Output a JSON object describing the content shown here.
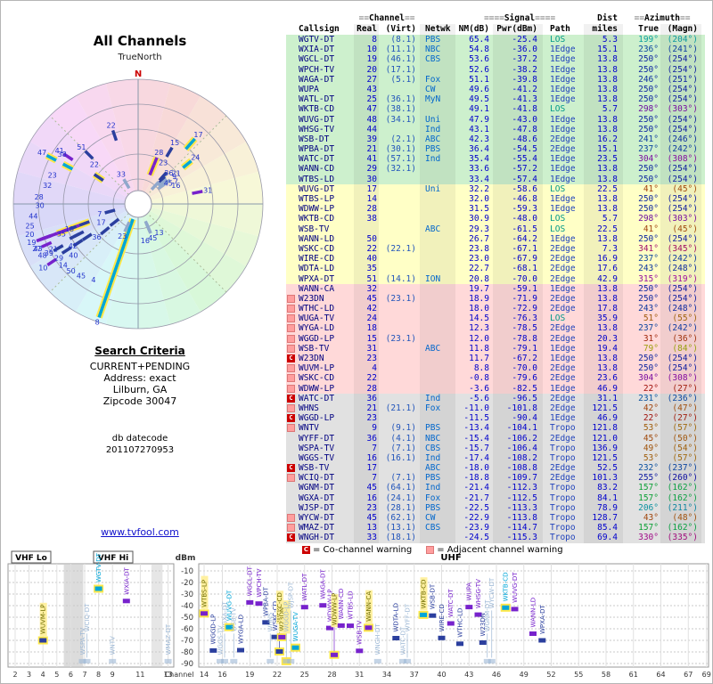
{
  "radar": {
    "title": "All Channels",
    "subtitle": "TrueNorth",
    "north_label": "N"
  },
  "search": {
    "heading": "Search Criteria",
    "lines": [
      "CURRENT+PENDING",
      "Address: exact",
      "Lilburn, GA",
      "Zipcode 30047"
    ],
    "datecode_label": "db datecode",
    "datecode": "201107270953"
  },
  "link": "www.tvfool.com",
  "table": {
    "groups": {
      "channel": "Channel",
      "signal": "Signal",
      "dist": "Dist",
      "azimuth": "Azimuth"
    },
    "headers": {
      "callsign": "Callsign",
      "real": "Real",
      "virt": "(Virt)",
      "netwk": "Netwk",
      "nm": "NM(dB)",
      "pwr": "Pwr(dBm)",
      "path": "Path",
      "miles": "miles",
      "true": "True",
      "magn": "(Magn)"
    }
  },
  "legend": {
    "c_symbol": "C",
    "c_text": "= Co-channel warning",
    "a_text": "= Adjacent channel warning"
  },
  "spectrum": {
    "bands": [
      "VHF Lo",
      "VHF Hi",
      "UHF"
    ],
    "dbm_label": "dBm",
    "channel_label": "Channel",
    "dbm_ticks": [
      -10,
      -20,
      -30,
      -40,
      -50,
      -60,
      -70,
      -80,
      -90
    ],
    "vhf_ticks": [
      2,
      3,
      4,
      5,
      6,
      7,
      8,
      9,
      11,
      13
    ],
    "uhf_ticks": [
      14,
      16,
      19,
      22,
      25,
      28,
      31,
      34,
      37,
      40,
      43,
      46,
      49,
      52,
      55,
      58,
      61,
      64,
      67,
      69
    ]
  },
  "colors": {
    "los": "#00a6d8",
    "edge1": "#7722cc",
    "edge2": "#2b3f9e",
    "tropo": "#90a8cc",
    "analog_halo": "#ffe84a",
    "north": "#cc0000",
    "link": "#1111cc",
    "band_green": "#cdf0cd",
    "band_yellow": "#ffffc6",
    "band_pink": "#ffd9d9",
    "band_gray": "#e1e1e1",
    "warn_c": "#cc0000",
    "warn_a": "#ff9e9e"
  },
  "chart_data": {
    "type": "table",
    "title": "All Channels",
    "columns": [
      "Callsign",
      "Real",
      "(Virt)",
      "Netwk",
      "NM(dB)",
      "Pwr(dBm)",
      "Path",
      "miles",
      "True",
      "(Magn)"
    ],
    "radar_plot": {
      "type": "polar-scatter",
      "angle_field": "az_true",
      "radius_field": "nm",
      "radius_range": [
        -30,
        70
      ]
    },
    "spectrum_plot": {
      "type": "scatter",
      "x_field": "real channel",
      "y_field": "pwr",
      "ylim": [
        -90,
        -10
      ]
    },
    "stations": [
      {
        "callsign": "WGTV-DT",
        "real": "8",
        "virt": "(8.1)",
        "netwk": "PBS",
        "nm": 65.4,
        "pwr": -25.4,
        "path": "LOS",
        "miles": 5.3,
        "az_true": 199,
        "az_magn": 204,
        "band": "green",
        "warn": "",
        "analog": false
      },
      {
        "callsign": "WXIA-DT",
        "real": "10",
        "virt": "(11.1)",
        "netwk": "NBC",
        "nm": 54.8,
        "pwr": -36.0,
        "path": "1Edge",
        "miles": 15.1,
        "az_true": 236,
        "az_magn": 241,
        "band": "green",
        "warn": "",
        "analog": false
      },
      {
        "callsign": "WGCL-DT",
        "real": "19",
        "virt": "(46.1)",
        "netwk": "CBS",
        "nm": 53.6,
        "pwr": -37.2,
        "path": "1Edge",
        "miles": 13.8,
        "az_true": 250,
        "az_magn": 254,
        "band": "green",
        "warn": "",
        "analog": false
      },
      {
        "callsign": "WPCH-TV",
        "real": "20",
        "virt": "(17.1)",
        "netwk": "",
        "nm": 52.6,
        "pwr": -38.2,
        "path": "1Edge",
        "miles": 13.8,
        "az_true": 250,
        "az_magn": 254,
        "band": "green",
        "warn": "",
        "analog": false
      },
      {
        "callsign": "WAGA-DT",
        "real": "27",
        "virt": "(5.1)",
        "netwk": "Fox",
        "nm": 51.1,
        "pwr": -39.8,
        "path": "1Edge",
        "miles": 13.8,
        "az_true": 246,
        "az_magn": 251,
        "band": "green",
        "warn": "",
        "analog": false
      },
      {
        "callsign": "WUPA",
        "real": "43",
        "virt": "",
        "netwk": "CW",
        "nm": 49.6,
        "pwr": -41.2,
        "path": "1Edge",
        "miles": 13.8,
        "az_true": 250,
        "az_magn": 254,
        "band": "green",
        "warn": "",
        "analog": false
      },
      {
        "callsign": "WATL-DT",
        "real": "25",
        "virt": "(36.1)",
        "netwk": "MyN",
        "nm": 49.5,
        "pwr": -41.3,
        "path": "1Edge",
        "miles": 13.8,
        "az_true": 250,
        "az_magn": 254,
        "band": "green",
        "warn": "",
        "analog": false
      },
      {
        "callsign": "WKTB-CD",
        "real": "47",
        "virt": "(38.1)",
        "netwk": "",
        "nm": 49.1,
        "pwr": -41.8,
        "path": "LOS",
        "miles": 5.7,
        "az_true": 298,
        "az_magn": 303,
        "band": "green",
        "warn": "",
        "analog": false
      },
      {
        "callsign": "WUVG-DT",
        "real": "48",
        "virt": "(34.1)",
        "netwk": "Uni",
        "nm": 47.9,
        "pwr": -43.0,
        "path": "1Edge",
        "miles": 13.8,
        "az_true": 250,
        "az_magn": 254,
        "band": "green",
        "warn": "",
        "analog": false
      },
      {
        "callsign": "WHSG-TV",
        "real": "44",
        "virt": "",
        "netwk": "Ind",
        "nm": 43.1,
        "pwr": -47.8,
        "path": "1Edge",
        "miles": 13.8,
        "az_true": 250,
        "az_magn": 254,
        "band": "green",
        "warn": "",
        "analog": false
      },
      {
        "callsign": "WSB-DT",
        "real": "39",
        "virt": "(2.1)",
        "netwk": "ABC",
        "nm": 42.3,
        "pwr": -48.6,
        "path": "2Edge",
        "miles": 16.2,
        "az_true": 241,
        "az_magn": 246,
        "band": "green",
        "warn": "",
        "analog": false
      },
      {
        "callsign": "WPBA-DT",
        "real": "21",
        "virt": "(30.1)",
        "netwk": "PBS",
        "nm": 36.4,
        "pwr": -54.5,
        "path": "2Edge",
        "miles": 15.1,
        "az_true": 237,
        "az_magn": 242,
        "band": "green",
        "warn": "",
        "analog": false
      },
      {
        "callsign": "WATC-DT",
        "real": "41",
        "virt": "(57.1)",
        "netwk": "Ind",
        "nm": 35.4,
        "pwr": -55.4,
        "path": "1Edge",
        "miles": 23.5,
        "az_true": 304,
        "az_magn": 308,
        "band": "green",
        "warn": "",
        "analog": false
      },
      {
        "callsign": "WANN-CD",
        "real": "29",
        "virt": "(32.1)",
        "netwk": "",
        "nm": 33.6,
        "pwr": -57.2,
        "path": "1Edge",
        "miles": 13.8,
        "az_true": 250,
        "az_magn": 254,
        "band": "green",
        "warn": "",
        "analog": false
      },
      {
        "callsign": "WTBS-LD",
        "real": "30",
        "virt": "",
        "netwk": "",
        "nm": 33.4,
        "pwr": -57.4,
        "path": "1Edge",
        "miles": 13.8,
        "az_true": 250,
        "az_magn": 254,
        "band": "green",
        "warn": "",
        "analog": false
      },
      {
        "callsign": "WUVG-DT",
        "real": "17",
        "virt": "",
        "netwk": "Uni",
        "nm": 32.2,
        "pwr": -58.6,
        "path": "LOS",
        "miles": 22.5,
        "az_true": 41,
        "az_magn": 45,
        "band": "yellow",
        "warn": "",
        "analog": false
      },
      {
        "callsign": "WTBS-LP",
        "real": "14",
        "virt": "",
        "netwk": "",
        "nm": 32.0,
        "pwr": -46.8,
        "path": "1Edge",
        "miles": 13.8,
        "az_true": 250,
        "az_magn": 254,
        "band": "yellow",
        "warn": "",
        "analog": true
      },
      {
        "callsign": "WDWW-LP",
        "real": "28",
        "virt": "",
        "netwk": "",
        "nm": 31.5,
        "pwr": -59.3,
        "path": "1Edge",
        "miles": 13.8,
        "az_true": 250,
        "az_magn": 254,
        "band": "yellow",
        "warn": "",
        "analog": false
      },
      {
        "callsign": "WKTB-CD",
        "real": "38",
        "virt": "",
        "netwk": "",
        "nm": 30.9,
        "pwr": -48.0,
        "path": "LOS",
        "miles": 5.7,
        "az_true": 298,
        "az_magn": 303,
        "band": "yellow",
        "warn": "",
        "analog": true
      },
      {
        "callsign": "WSB-TV",
        "real": "",
        "virt": "",
        "netwk": "ABC",
        "nm": 29.3,
        "pwr": -61.5,
        "path": "LOS",
        "miles": 22.5,
        "az_true": 41,
        "az_magn": 45,
        "band": "yellow",
        "warn": "",
        "analog": false
      },
      {
        "callsign": "WANN-LD",
        "real": "50",
        "virt": "",
        "netwk": "",
        "nm": 26.7,
        "pwr": -64.2,
        "path": "1Edge",
        "miles": 13.8,
        "az_true": 250,
        "az_magn": 254,
        "band": "yellow",
        "warn": "",
        "analog": false
      },
      {
        "callsign": "WSKC-CD",
        "real": "22",
        "virt": "(22.1)",
        "netwk": "",
        "nm": 23.8,
        "pwr": -67.1,
        "path": "2Edge",
        "miles": 7.3,
        "az_true": 341,
        "az_magn": 345,
        "band": "yellow",
        "warn": "",
        "analog": false
      },
      {
        "callsign": "WIRE-CD",
        "real": "40",
        "virt": "",
        "netwk": "",
        "nm": 23.0,
        "pwr": -67.9,
        "path": "2Edge",
        "miles": 16.9,
        "az_true": 237,
        "az_magn": 242,
        "band": "yellow",
        "warn": "",
        "analog": false
      },
      {
        "callsign": "WDTA-LD",
        "real": "35",
        "virt": "",
        "netwk": "",
        "nm": 22.7,
        "pwr": -68.1,
        "path": "2Edge",
        "miles": 17.6,
        "az_true": 243,
        "az_magn": 248,
        "band": "yellow",
        "warn": "",
        "analog": false
      },
      {
        "callsign": "WPXA-DT",
        "real": "51",
        "virt": "(14.1)",
        "netwk": "ION",
        "nm": 20.8,
        "pwr": -70.0,
        "path": "2Edge",
        "miles": 42.9,
        "az_true": 315,
        "az_magn": 319,
        "band": "yellow",
        "warn": "",
        "analog": false
      },
      {
        "callsign": "WANN-CA",
        "real": "32",
        "virt": "",
        "netwk": "",
        "nm": 19.7,
        "pwr": -59.1,
        "path": "1Edge",
        "miles": 13.8,
        "az_true": 250,
        "az_magn": 254,
        "band": "pink",
        "warn": "",
        "analog": true
      },
      {
        "callsign": "W23DN",
        "real": "45",
        "virt": "(23.1)",
        "netwk": "",
        "nm": 18.9,
        "pwr": -71.9,
        "path": "2Edge",
        "miles": 13.8,
        "az_true": 250,
        "az_magn": 254,
        "band": "pink",
        "warn": "A",
        "analog": false
      },
      {
        "callsign": "WTHC-LD",
        "real": "42",
        "virt": "",
        "netwk": "",
        "nm": 18.0,
        "pwr": -72.9,
        "path": "2Edge",
        "miles": 17.8,
        "az_true": 243,
        "az_magn": 248,
        "band": "pink",
        "warn": "A",
        "analog": false
      },
      {
        "callsign": "WUGA-TV",
        "real": "24",
        "virt": "",
        "netwk": "",
        "nm": 14.5,
        "pwr": -76.3,
        "path": "LOS",
        "miles": 35.9,
        "az_true": 51,
        "az_magn": 55,
        "band": "pink",
        "warn": "A",
        "analog": false
      },
      {
        "callsign": "WYGA-LD",
        "real": "18",
        "virt": "",
        "netwk": "",
        "nm": 12.3,
        "pwr": -78.5,
        "path": "2Edge",
        "miles": 13.8,
        "az_true": 237,
        "az_magn": 242,
        "band": "pink",
        "warn": "A",
        "analog": false
      },
      {
        "callsign": "WGGD-LP",
        "real": "15",
        "virt": "(23.1)",
        "netwk": "",
        "nm": 12.0,
        "pwr": -78.8,
        "path": "2Edge",
        "miles": 20.3,
        "az_true": 31,
        "az_magn": 36,
        "band": "pink",
        "warn": "A",
        "analog": false
      },
      {
        "callsign": "WSB-TV",
        "real": "31",
        "virt": "",
        "netwk": "ABC",
        "nm": 11.8,
        "pwr": -79.1,
        "path": "1Edge",
        "miles": 19.4,
        "az_true": 79,
        "az_magn": 84,
        "band": "pink",
        "warn": "A",
        "analog": false
      },
      {
        "callsign": "W23DN",
        "real": "23",
        "virt": "",
        "netwk": "",
        "nm": 11.7,
        "pwr": -67.2,
        "path": "1Edge",
        "miles": 13.8,
        "az_true": 250,
        "az_magn": 254,
        "band": "pink",
        "warn": "C",
        "analog": true
      },
      {
        "callsign": "WUVM-LP",
        "real": "4",
        "virt": "",
        "netwk": "",
        "nm": 8.8,
        "pwr": -70.0,
        "path": "2Edge",
        "miles": 13.8,
        "az_true": 250,
        "az_magn": 254,
        "band": "pink",
        "warn": "A",
        "analog": true
      },
      {
        "callsign": "WSKC-CD",
        "real": "22",
        "virt": "",
        "netwk": "",
        "nm": -0.8,
        "pwr": -79.6,
        "path": "2Edge",
        "miles": 23.6,
        "az_true": 304,
        "az_magn": 308,
        "band": "pink",
        "warn": "A",
        "analog": true
      },
      {
        "callsign": "WDWW-LP",
        "real": "28",
        "virt": "",
        "netwk": "",
        "nm": -3.6,
        "pwr": -82.5,
        "path": "1Edge",
        "miles": 46.9,
        "az_true": 22,
        "az_magn": 27,
        "band": "pink",
        "warn": "A",
        "analog": true
      },
      {
        "callsign": "WATC-DT",
        "real": "36",
        "virt": "",
        "netwk": "Ind",
        "nm": -5.6,
        "pwr": -96.5,
        "path": "2Edge",
        "miles": 31.1,
        "az_true": 231,
        "az_magn": 236,
        "band": "gray",
        "warn": "C",
        "analog": false
      },
      {
        "callsign": "WHNS",
        "real": "21",
        "virt": "(21.1)",
        "netwk": "Fox",
        "nm": -11.0,
        "pwr": -101.8,
        "path": "2Edge",
        "miles": 121.5,
        "az_true": 42,
        "az_magn": 47,
        "band": "gray",
        "warn": "A",
        "analog": false
      },
      {
        "callsign": "WGGD-LP",
        "real": "23",
        "virt": "",
        "netwk": "",
        "nm": -11.5,
        "pwr": -90.4,
        "path": "1Edge",
        "miles": 46.9,
        "az_true": 22,
        "az_magn": 27,
        "band": "gray",
        "warn": "C",
        "analog": true
      },
      {
        "callsign": "WNTV",
        "real": "9",
        "virt": "(9.1)",
        "netwk": "PBS",
        "nm": -13.4,
        "pwr": -104.1,
        "path": "Tropo",
        "miles": 121.8,
        "az_true": 53,
        "az_magn": 57,
        "band": "gray",
        "warn": "A",
        "analog": false
      },
      {
        "callsign": "WYFF-DT",
        "real": "36",
        "virt": "(4.1)",
        "netwk": "NBC",
        "nm": -15.4,
        "pwr": -106.2,
        "path": "2Edge",
        "miles": 121.0,
        "az_true": 45,
        "az_magn": 50,
        "band": "gray",
        "warn": "",
        "analog": false
      },
      {
        "callsign": "WSPA-TV",
        "real": "7",
        "virt": "(7.1)",
        "netwk": "CBS",
        "nm": -15.7,
        "pwr": -106.4,
        "path": "Tropo",
        "miles": 136.9,
        "az_true": 49,
        "az_magn": 54,
        "band": "gray",
        "warn": "",
        "analog": false
      },
      {
        "callsign": "WGGS-TV",
        "real": "16",
        "virt": "(16.1)",
        "netwk": "Ind",
        "nm": -17.4,
        "pwr": -108.2,
        "path": "Tropo",
        "miles": 121.5,
        "az_true": 53,
        "az_magn": 57,
        "band": "gray",
        "warn": "",
        "analog": false
      },
      {
        "callsign": "WSB-TV",
        "real": "17",
        "virt": "",
        "netwk": "ABC",
        "nm": -18.0,
        "pwr": -108.8,
        "path": "2Edge",
        "miles": 52.5,
        "az_true": 232,
        "az_magn": 237,
        "band": "gray",
        "warn": "C",
        "analog": false
      },
      {
        "callsign": "WCIQ-DT",
        "real": "7",
        "virt": "(7.1)",
        "netwk": "PBS",
        "nm": -18.8,
        "pwr": -109.7,
        "path": "2Edge",
        "miles": 101.3,
        "az_true": 255,
        "az_magn": 260,
        "band": "gray",
        "warn": "A",
        "analog": false
      },
      {
        "callsign": "WGNM-DT",
        "real": "45",
        "virt": "(64.1)",
        "netwk": "Ind",
        "nm": -21.4,
        "pwr": -112.3,
        "path": "Tropo",
        "miles": 83.2,
        "az_true": 157,
        "az_magn": 162,
        "band": "gray",
        "warn": "",
        "analog": false
      },
      {
        "callsign": "WGXA-DT",
        "real": "16",
        "virt": "(24.1)",
        "netwk": "Fox",
        "nm": -21.7,
        "pwr": -112.5,
        "path": "Tropo",
        "miles": 84.1,
        "az_true": 157,
        "az_magn": 162,
        "band": "gray",
        "warn": "",
        "analog": false
      },
      {
        "callsign": "WJSP-DT",
        "real": "23",
        "virt": "(28.1)",
        "netwk": "PBS",
        "nm": -22.5,
        "pwr": -113.3,
        "path": "Tropo",
        "miles": 78.9,
        "az_true": 206,
        "az_magn": 211,
        "band": "gray",
        "warn": "",
        "analog": false
      },
      {
        "callsign": "WYCW-DT",
        "real": "45",
        "virt": "(62.1)",
        "netwk": "CW",
        "nm": -22.9,
        "pwr": -113.8,
        "path": "Tropo",
        "miles": 128.7,
        "az_true": 43,
        "az_magn": 48,
        "band": "gray",
        "warn": "A",
        "analog": false
      },
      {
        "callsign": "WMAZ-DT",
        "real": "13",
        "virt": "(13.1)",
        "netwk": "CBS",
        "nm": -23.9,
        "pwr": -114.7,
        "path": "Tropo",
        "miles": 85.4,
        "az_true": 157,
        "az_magn": 162,
        "band": "gray",
        "warn": "A",
        "analog": false
      },
      {
        "callsign": "WNGH-DT",
        "real": "33",
        "virt": "(18.1)",
        "netwk": "",
        "nm": -24.5,
        "pwr": -115.3,
        "path": "Tropo",
        "miles": 69.4,
        "az_true": 330,
        "az_magn": 335,
        "band": "gray",
        "warn": "C",
        "analog": false
      }
    ]
  }
}
